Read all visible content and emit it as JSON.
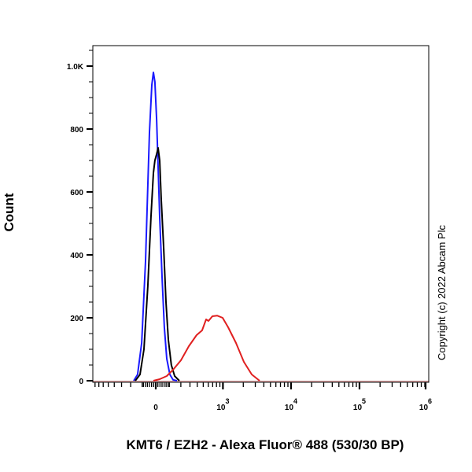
{
  "chart_data": {
    "type": "line",
    "title": "",
    "xlabel": "KMT6 / EZH2 - Alexa Fluor® 488 (530/30 BP)",
    "ylabel": "Count",
    "x_scale": "biexponential",
    "xlim": [
      -865,
      1030000
    ],
    "ylim": [
      0,
      1070
    ],
    "x_ticks": [
      {
        "value": 0,
        "label": "0",
        "exp": ""
      },
      {
        "value": 1000,
        "label": "10",
        "exp": "3"
      },
      {
        "value": 10000,
        "label": "10",
        "exp": "4"
      },
      {
        "value": 100000,
        "label": "10",
        "exp": "5"
      },
      {
        "value": 1000000,
        "label": "10",
        "exp": "6"
      }
    ],
    "y_ticks": [
      {
        "value": 0,
        "label": "0"
      },
      {
        "value": 200,
        "label": "200"
      },
      {
        "value": 400,
        "label": "400"
      },
      {
        "value": 600,
        "label": "600"
      },
      {
        "value": 800,
        "label": "800"
      },
      {
        "value": 1000,
        "label": "1.0K"
      }
    ],
    "grid": false,
    "series": [
      {
        "color": "#1a1aff",
        "x": [
          -171,
          -137,
          -104,
          -74,
          -57,
          -45,
          -28,
          -17,
          -6,
          6,
          17,
          28,
          45,
          62,
          80,
          104,
          130,
          164
        ],
        "y": [
          0,
          20,
          120,
          380,
          620,
          790,
          940,
          980,
          950,
          830,
          680,
          520,
          330,
          170,
          70,
          20,
          3,
          0
        ]
      },
      {
        "color": "#000000",
        "x": [
          -157,
          -117,
          -86,
          -57,
          -34,
          -17,
          -6,
          6,
          17,
          28,
          39,
          57,
          74,
          92,
          116,
          143,
          186
        ],
        "y": [
          0,
          20,
          100,
          300,
          520,
          660,
          700,
          720,
          740,
          700,
          580,
          420,
          250,
          130,
          50,
          15,
          0
        ]
      },
      {
        "color": "#e02020",
        "x": [
          -17,
          28,
          80,
          130,
          201,
          287,
          390,
          479,
          555,
          604,
          694,
          817,
          990,
          1194,
          1563,
          2040,
          2660,
          3470
        ],
        "y": [
          0,
          5,
          15,
          35,
          65,
          110,
          145,
          160,
          195,
          190,
          205,
          207,
          200,
          170,
          120,
          60,
          20,
          0
        ]
      }
    ],
    "annotations": [
      "Copyright (c) 2022 Abcam Plc"
    ]
  }
}
